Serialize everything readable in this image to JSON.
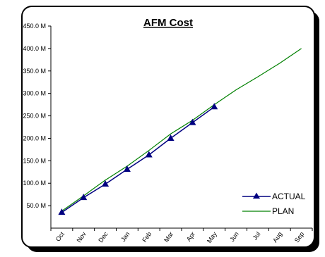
{
  "chart_data": {
    "type": "line",
    "title": "AFM Cost",
    "xlabel": "",
    "ylabel": "",
    "categories": [
      "Oct",
      "Nov",
      "Dec",
      "Jan",
      "Feb",
      "Mar",
      "Apr",
      "May",
      "Jun",
      "Jul",
      "Aug",
      "Sep"
    ],
    "ylim": [
      0,
      450
    ],
    "yticks": [
      50,
      100,
      150,
      200,
      250,
      300,
      350,
      400,
      450
    ],
    "ytick_labels": [
      "50.0 M",
      "100.0 M",
      "150.0 M",
      "200.0 M",
      "250.0 M",
      "300.0 M",
      "350.0 M",
      "400.0 M",
      "450.0 M"
    ],
    "grid": false,
    "legend_position": "bottom-right",
    "series": [
      {
        "name": "ACTUAL",
        "color": "#000080",
        "marker": "triangle",
        "values": [
          35,
          68,
          98,
          131,
          163,
          200,
          235,
          270,
          null,
          null,
          null,
          null
        ]
      },
      {
        "name": "PLAN",
        "color": "#008000",
        "marker": "none",
        "values": [
          38,
          72,
          107,
          138,
          173,
          210,
          240,
          275,
          308,
          337,
          367,
          400
        ]
      }
    ]
  }
}
